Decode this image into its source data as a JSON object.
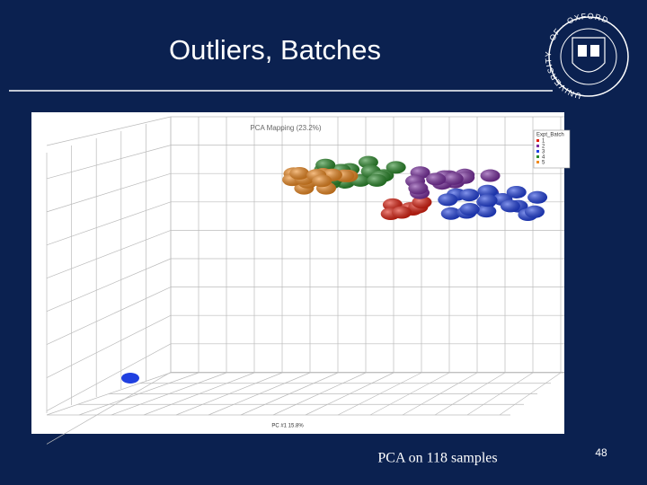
{
  "header": {
    "title": "Outliers, Batches"
  },
  "logo": {
    "text": "UNIVERSITY · OF · OXFORD"
  },
  "figure": {
    "title": "PCA Mapping (23.2%)",
    "x_axis_label": "PC #1 15.8%",
    "legend": {
      "title": "Expt_Batch",
      "items": [
        {
          "label": "1",
          "color": "#e02010"
        },
        {
          "label": "2",
          "color": "#7a2ea0"
        },
        {
          "label": "3",
          "color": "#2040e0"
        },
        {
          "label": "4",
          "color": "#2a8a2a"
        },
        {
          "label": "5",
          "color": "#f08a20"
        }
      ]
    }
  },
  "caption": "PCA on 118 samples",
  "page_number": "48"
}
